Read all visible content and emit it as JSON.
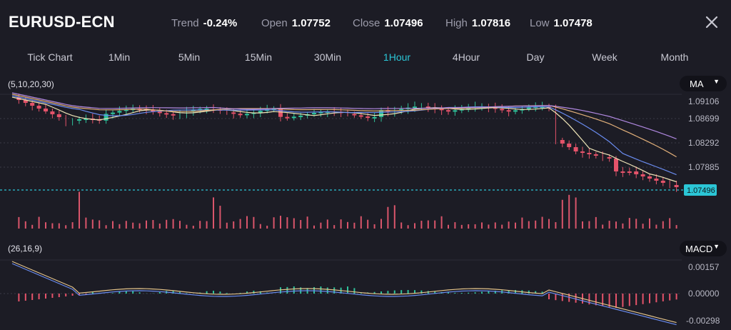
{
  "header": {
    "symbol": "EURUSD-ECN",
    "stats": [
      {
        "label": "Trend",
        "value": "-0.24%"
      },
      {
        "label": "Open",
        "value": "1.07752"
      },
      {
        "label": "Close",
        "value": "1.07496"
      },
      {
        "label": "High",
        "value": "1.07816"
      },
      {
        "label": "Low",
        "value": "1.07478"
      }
    ],
    "close_icon": "close-icon"
  },
  "tabs": [
    "Tick Chart",
    "1Min",
    "5Min",
    "15Min",
    "30Min",
    "1Hour",
    "4Hour",
    "Day",
    "Week",
    "Month"
  ],
  "active_tab": "1Hour",
  "price_panel": {
    "indicator_params": "(5,10,20,30)",
    "indicator_select": "MA",
    "y_ticks": [
      "1.09106",
      "1.08699",
      "1.08292",
      "1.07885"
    ],
    "current_price": "1.07496"
  },
  "macd_panel": {
    "indicator_params": "(26,16,9)",
    "indicator_select": "MACD",
    "y_ticks": [
      "0.00157",
      "0.00000",
      "-0.00298"
    ]
  },
  "colors": {
    "background": "#1c1c25",
    "up": "#2fc29a",
    "down": "#e4536a",
    "accent": "#2bc6d6",
    "ma5": "#f0e6b8",
    "ma10": "#6a8cf0",
    "ma20": "#e2b07a",
    "ma30": "#b088e0"
  }
}
